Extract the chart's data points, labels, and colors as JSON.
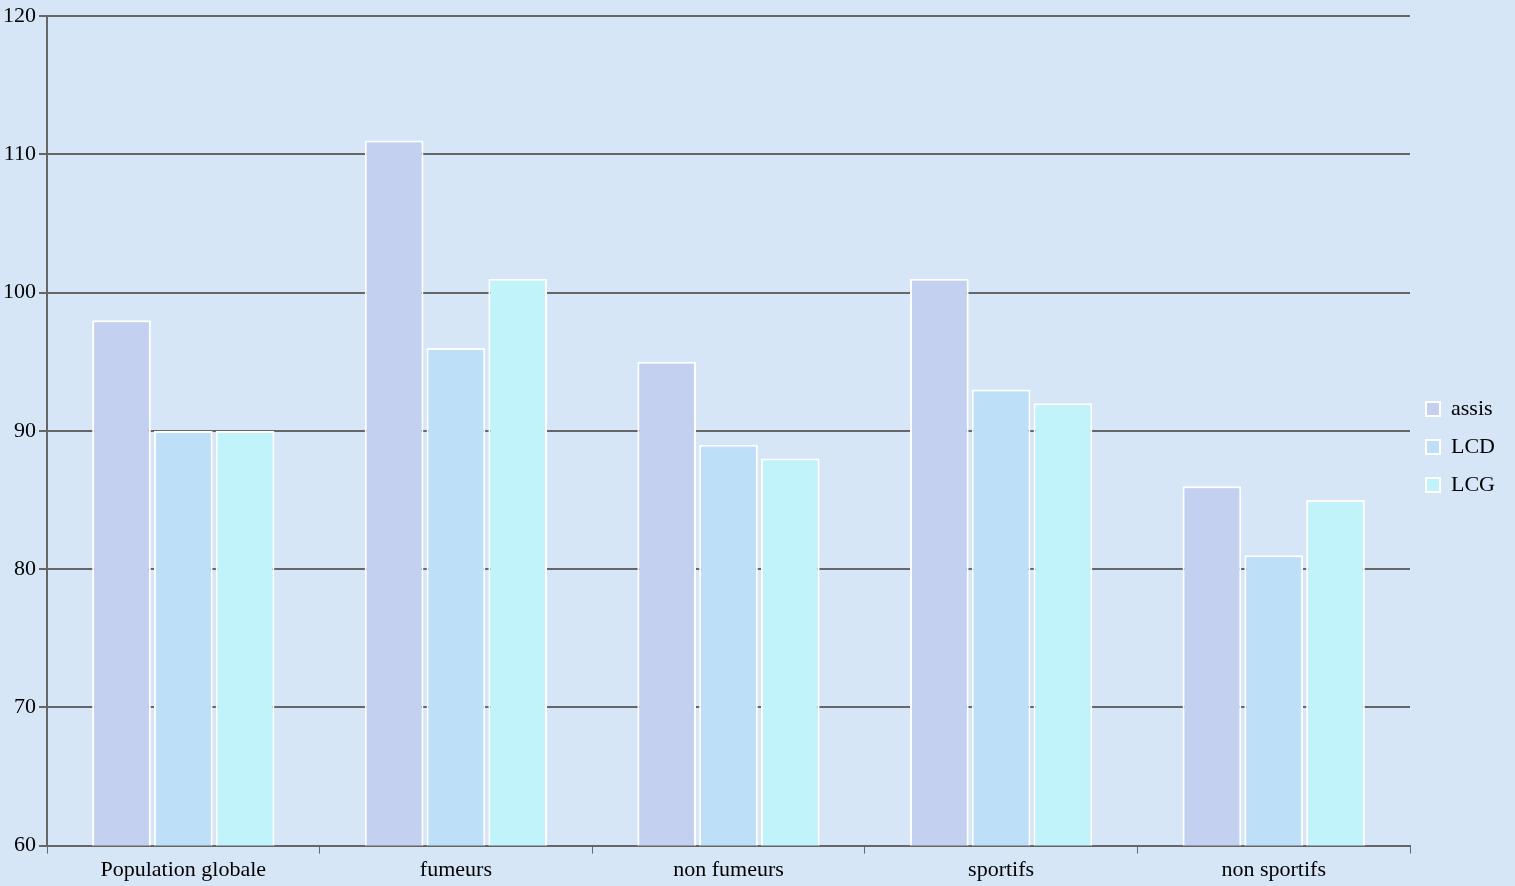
{
  "chart_data": {
    "type": "bar",
    "categories": [
      "Population globale",
      "fumeurs",
      "non fumeurs",
      "sportifs",
      "non sportifs"
    ],
    "series": [
      {
        "name": "assis",
        "color": "#c4d0f0",
        "values": [
          98,
          111,
          95,
          101,
          86
        ]
      },
      {
        "name": "LCD",
        "color": "#bde0f8",
        "values": [
          90,
          96,
          89,
          93,
          81
        ]
      },
      {
        "name": "LCG",
        "color": "#c0f4fa",
        "values": [
          90,
          101,
          88,
          92,
          85
        ]
      }
    ],
    "ylim": [
      60,
      120
    ],
    "yticks": [
      60,
      70,
      80,
      90,
      100,
      110,
      120
    ],
    "grid": "y",
    "legend": "right"
  }
}
